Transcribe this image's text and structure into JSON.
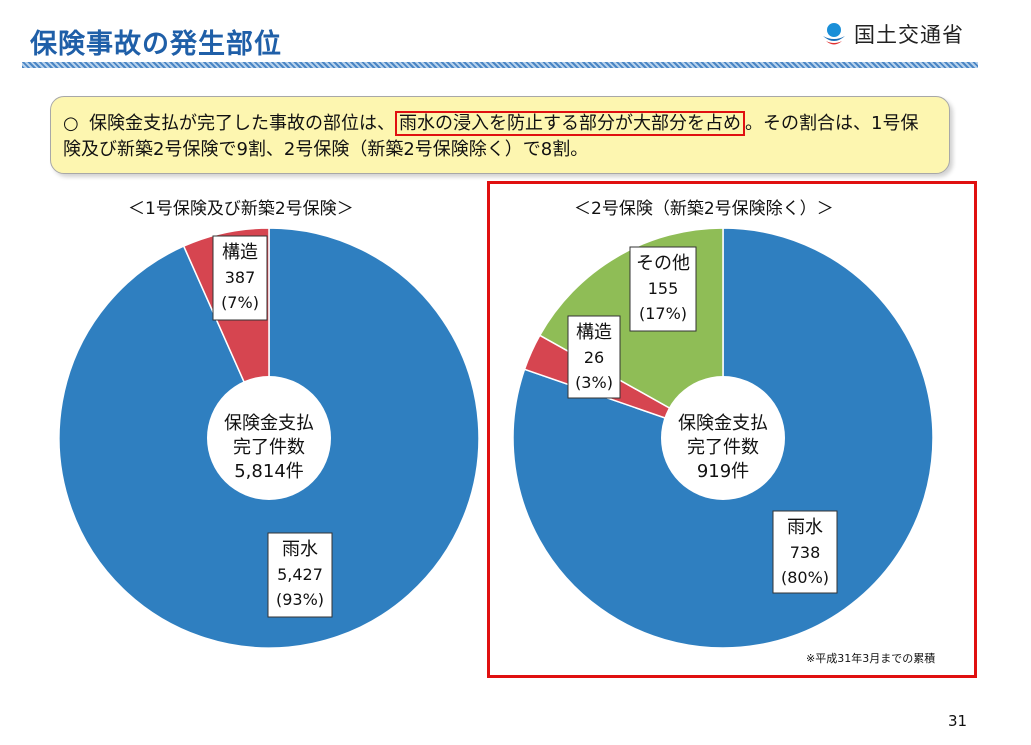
{
  "header": {
    "title": "保険事故の発生部位",
    "logo_text": "国土交通省"
  },
  "summary": {
    "bullet": "○",
    "text_before": "保険金支払が完了した事故の部位は、",
    "text_highlight": "雨水の浸入を防止する部分が大部分を占め",
    "text_after": "。その割合は、1号保険及び新築2号保険で9割、2号保険（新築2号保険除く）で8割。"
  },
  "chart_data": [
    {
      "type": "pie",
      "title": "＜1号保険及び新築2号保険＞",
      "center_label": [
        "保険金支払",
        "完了件数",
        "5,814件"
      ],
      "slices": [
        {
          "name": "構造",
          "value": 387,
          "value_label": "387",
          "pct_label": "(7%)",
          "color": "#d64550"
        },
        {
          "name": "雨水",
          "value": 5427,
          "value_label": "5,427",
          "pct_label": "(93%)",
          "color": "#2f7fc0"
        }
      ]
    },
    {
      "type": "pie",
      "title": "＜2号保険（新築2号保険除く）＞",
      "center_label": [
        "保険金支払",
        "完了件数",
        "919件"
      ],
      "slices": [
        {
          "name": "雨水",
          "value": 738,
          "value_label": "738",
          "pct_label": "(80%)",
          "color": "#2f7fc0"
        },
        {
          "name": "構造",
          "value": 26,
          "value_label": "26",
          "pct_label": "(3%)",
          "color": "#d64550"
        },
        {
          "name": "その他",
          "value": 155,
          "value_label": "155",
          "pct_label": "(17%)",
          "color": "#8fbd56"
        }
      ]
    }
  ],
  "note": "※平成31年3月までの累積",
  "page_number": "31"
}
